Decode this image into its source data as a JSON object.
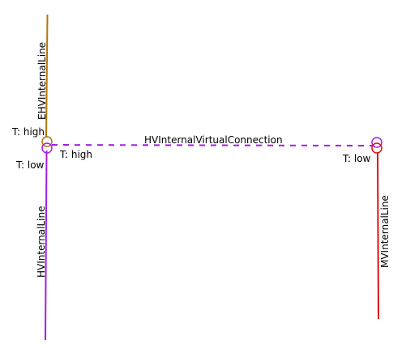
{
  "diagram": {
    "lines": {
      "ehv": {
        "label": "EHVInternalLine",
        "color": "#b5750b"
      },
      "hv": {
        "label": "HVInternalLine",
        "color": "#a51ee0"
      },
      "mv": {
        "label": "MVInternalLine",
        "color": "#e01010"
      },
      "virtual": {
        "label": "HVInternalVirtualConnection",
        "color": "#a51ee0"
      }
    },
    "transformers": {
      "left": {
        "upper_color": "#b5750b",
        "lower_color": "#a51ee0",
        "upper_label": "T: high",
        "lower_label": "T: low",
        "connection_label": "T: high"
      },
      "right": {
        "upper_color": "#a51ee0",
        "lower_color": "#e01010",
        "lower_label": "T: low"
      }
    }
  }
}
